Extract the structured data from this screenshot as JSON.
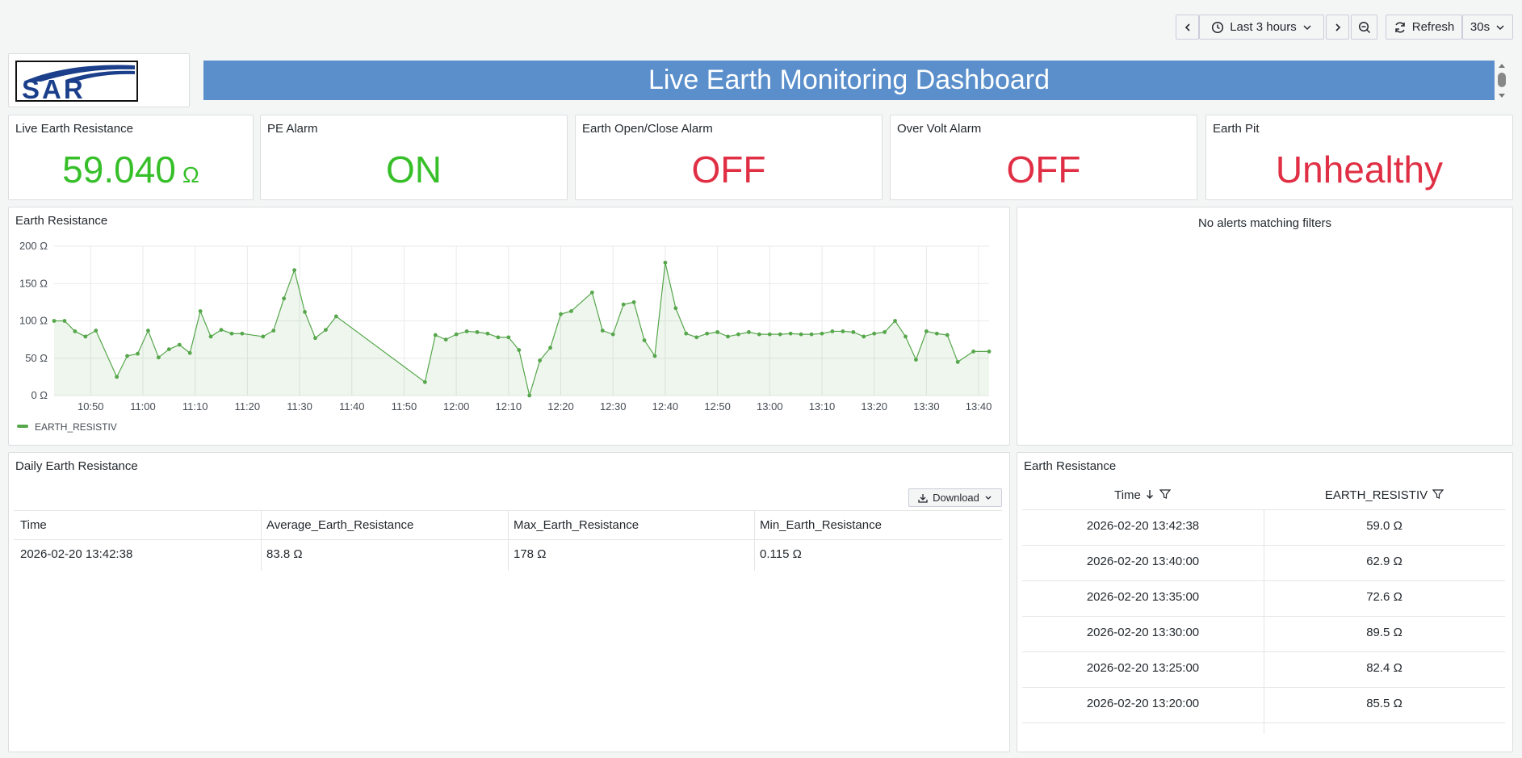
{
  "toolbar": {
    "time_range": "Last 3 hours",
    "refresh": "Refresh",
    "interval": "30s"
  },
  "logo": "SAR",
  "header": {
    "title": "Live Earth Monitoring Dashboard"
  },
  "stats": [
    {
      "title": "Live Earth Resistance",
      "value": "59.040",
      "unit": "Ω",
      "color": "#37bf2a"
    },
    {
      "title": "PE Alarm",
      "value": "ON",
      "color": "#37bf2a"
    },
    {
      "title": "Earth Open/Close Alarm",
      "value": "OFF",
      "color": "#e02f44"
    },
    {
      "title": "Over Volt Alarm",
      "value": "OFF",
      "color": "#e02f44"
    },
    {
      "title": "Earth Pit",
      "value": "Unhealthy",
      "color": "#e02f44"
    }
  ],
  "chart_data": {
    "type": "line",
    "title": "Earth Resistance",
    "x": [
      "10:43",
      "10:45",
      "10:47",
      "10:49",
      "10:51",
      "10:55",
      "10:57",
      "10:59",
      "11:01",
      "11:03",
      "11:05",
      "11:07",
      "11:09",
      "11:11",
      "11:13",
      "11:15",
      "11:17",
      "11:19",
      "11:23",
      "11:25",
      "11:27",
      "11:29",
      "11:31",
      "11:33",
      "11:35",
      "11:37",
      "11:54",
      "11:56",
      "11:58",
      "12:00",
      "12:02",
      "12:04",
      "12:06",
      "12:08",
      "12:10",
      "12:12",
      "12:14",
      "12:16",
      "12:18",
      "12:20",
      "12:22",
      "12:26",
      "12:28",
      "12:30",
      "12:32",
      "12:34",
      "12:36",
      "12:38",
      "12:40",
      "12:42",
      "12:44",
      "12:46",
      "12:48",
      "12:50",
      "12:52",
      "12:54",
      "12:56",
      "12:58",
      "13:00",
      "13:02",
      "13:04",
      "13:06",
      "13:08",
      "13:10",
      "13:12",
      "13:14",
      "13:16",
      "13:18",
      "13:20",
      "13:22",
      "13:24",
      "13:26",
      "13:28",
      "13:30",
      "13:32",
      "13:34",
      "13:36",
      "13:39",
      "13:42"
    ],
    "series": [
      {
        "name": "EARTH_RESISTIV",
        "color": "#56a64b",
        "values": [
          100,
          100,
          86,
          79,
          87,
          25,
          53,
          56,
          87,
          51,
          62,
          68,
          57,
          113,
          79,
          88,
          83,
          83,
          79,
          87,
          130,
          168,
          112,
          77,
          88,
          106,
          18,
          81,
          75,
          82,
          86,
          85,
          83,
          78,
          78,
          61,
          0.115,
          47,
          64,
          109,
          113,
          138,
          87,
          82,
          122,
          125,
          74,
          53,
          178,
          117,
          83,
          78,
          83,
          85,
          79,
          82,
          85,
          82,
          82,
          82,
          83,
          82,
          82,
          83,
          86,
          86,
          85,
          79,
          83,
          85,
          100,
          79,
          48,
          86,
          83,
          81,
          45,
          59.04,
          59.04
        ]
      }
    ],
    "xlim": [
      "10:43",
      "13:42"
    ],
    "xticks": [
      "10:50",
      "11:00",
      "11:10",
      "11:20",
      "11:30",
      "11:40",
      "11:50",
      "12:00",
      "12:10",
      "12:20",
      "12:30",
      "12:40",
      "12:50",
      "13:00",
      "13:10",
      "13:20",
      "13:30",
      "13:40"
    ],
    "ylim": [
      0,
      200
    ],
    "yticks": [
      {
        "value": 0,
        "label": "0 Ω"
      },
      {
        "value": 50,
        "label": "50 Ω"
      },
      {
        "value": 100,
        "label": "100 Ω"
      },
      {
        "value": 150,
        "label": "150 Ω"
      },
      {
        "value": 200,
        "label": "200 Ω"
      }
    ],
    "grid": true
  },
  "alerts": {
    "message": "No alerts matching filters"
  },
  "daily_table": {
    "title": "Daily Earth Resistance",
    "download": "Download",
    "columns": [
      "Time",
      "Average_Earth_Resistance",
      "Max_Earth_Resistance",
      "Min_Earth_Resistance"
    ],
    "rows": [
      [
        "2026-02-20 13:42:38",
        "83.8 Ω",
        "178 Ω",
        "0.115 Ω"
      ]
    ]
  },
  "resistance_table": {
    "title": "Earth Resistance",
    "columns": [
      "Time",
      "EARTH_RESISTIV"
    ],
    "rows": [
      [
        "2026-02-20 13:42:38",
        "59.0 Ω"
      ],
      [
        "2026-02-20 13:40:00",
        "62.9 Ω"
      ],
      [
        "2026-02-20 13:35:00",
        "72.6 Ω"
      ],
      [
        "2026-02-20 13:30:00",
        "89.5 Ω"
      ],
      [
        "2026-02-20 13:25:00",
        "82.4 Ω"
      ],
      [
        "2026-02-20 13:20:00",
        "85.5 Ω"
      ]
    ]
  }
}
